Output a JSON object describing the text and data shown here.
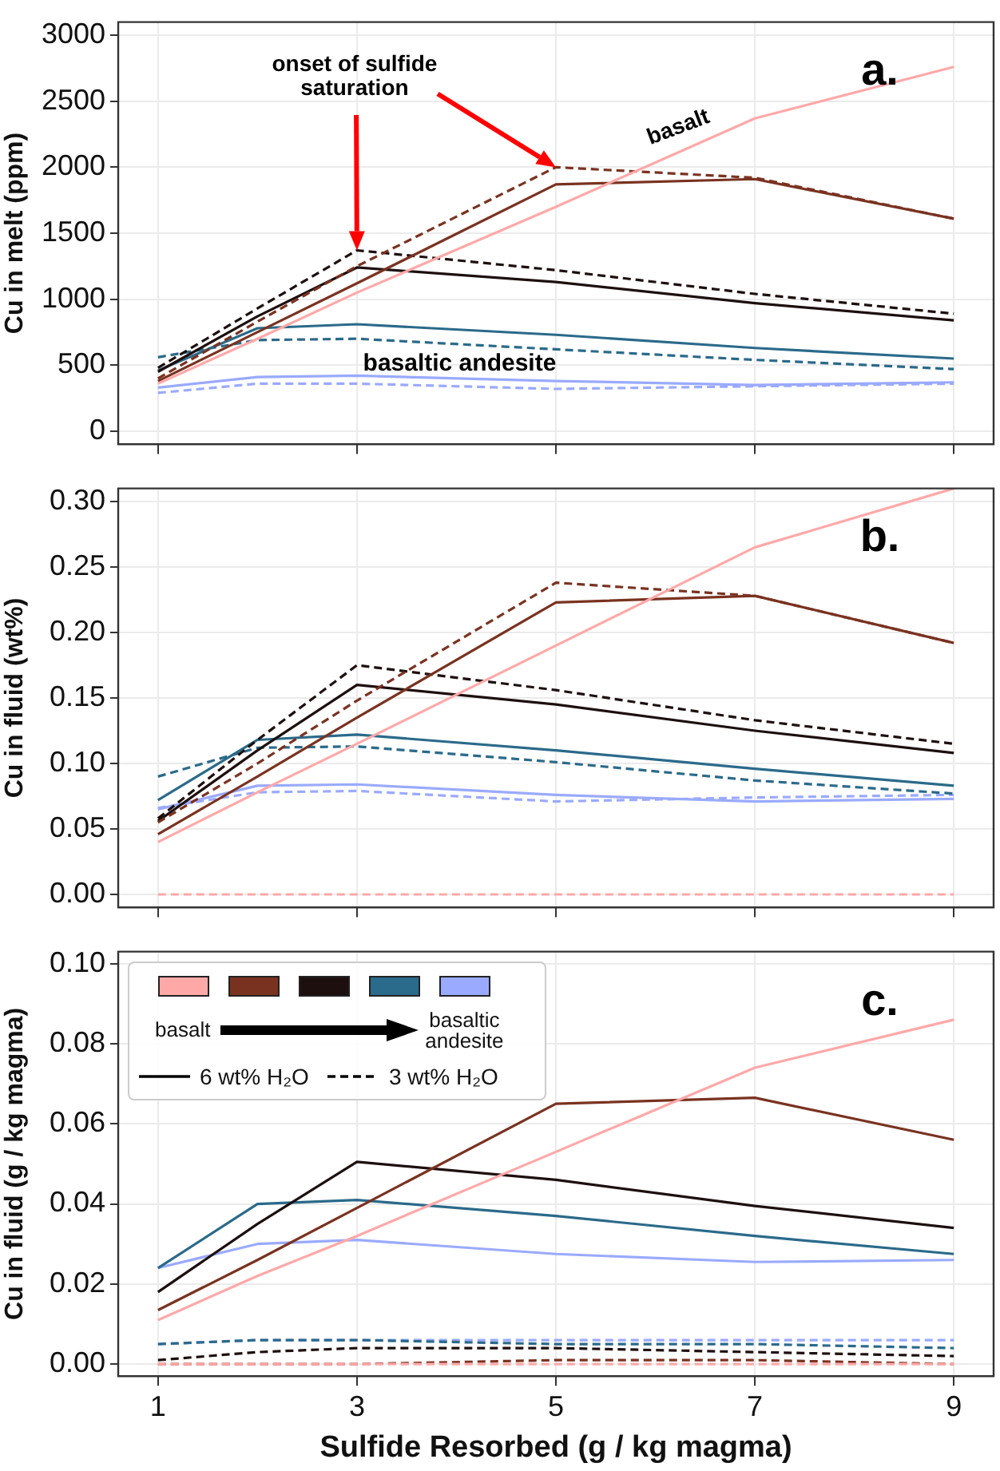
{
  "chart_data": [
    {
      "type": "line",
      "ylabel": "Cu in melt (ppm)",
      "x": [
        1,
        2,
        3,
        5,
        7,
        9
      ],
      "xlim": [
        0.6,
        9.4
      ],
      "xticks": [
        1,
        3,
        5,
        7,
        9
      ],
      "ylim": [
        -100,
        3100
      ],
      "yticks": [
        0,
        500,
        1000,
        1500,
        2000,
        2500,
        3000
      ],
      "grid": true,
      "tick_labels": "y",
      "annotations": [
        "a.",
        "onset of sulfide saturation",
        "basalt",
        "basaltic andesite"
      ],
      "series": [
        {
          "color": "#ffa8a8",
          "line_style": "solid",
          "values": [
            360,
            700,
            1050,
            1700,
            2370,
            2760
          ]
        },
        {
          "color": "#7a3220",
          "line_style": "solid",
          "values": [
            380,
            750,
            1120,
            1870,
            1910,
            1610
          ]
        },
        {
          "color": "#7a3220",
          "line_style": "dashed",
          "values": [
            400,
            830,
            1250,
            2000,
            1920,
            1610
          ]
        },
        {
          "color": "#1e0f0f",
          "line_style": "solid",
          "values": [
            450,
            870,
            1240,
            1130,
            970,
            840
          ]
        },
        {
          "color": "#1e0f0f",
          "line_style": "dashed",
          "values": [
            480,
            930,
            1370,
            1220,
            1040,
            890
          ]
        },
        {
          "color": "#2a6a8a",
          "line_style": "solid",
          "values": [
            460,
            780,
            810,
            730,
            630,
            550
          ]
        },
        {
          "color": "#2a6a8a",
          "line_style": "dashed",
          "values": [
            560,
            690,
            700,
            620,
            540,
            470
          ]
        },
        {
          "color": "#9aaaff",
          "line_style": "solid",
          "values": [
            330,
            410,
            420,
            380,
            350,
            370
          ]
        },
        {
          "color": "#9aaaff",
          "line_style": "dashed",
          "values": [
            290,
            360,
            360,
            320,
            340,
            360
          ]
        }
      ]
    },
    {
      "type": "line",
      "ylabel": "Cu in fluid (wt%)",
      "x": [
        1,
        2,
        3,
        5,
        7,
        9
      ],
      "xlim": [
        0.6,
        9.4
      ],
      "xticks": [
        1,
        3,
        5,
        7,
        9
      ],
      "ylim": [
        -0.01,
        0.31
      ],
      "yticks": [
        {
          "value": 0,
          "label": "0.00"
        },
        {
          "value": 0.05,
          "label": "0.05"
        },
        {
          "value": 0.1,
          "label": "0.10"
        },
        {
          "value": 0.15,
          "label": "0.15"
        },
        {
          "value": 0.2,
          "label": "0.20"
        },
        {
          "value": 0.25,
          "label": "0.25"
        },
        {
          "value": 0.3,
          "label": "0.30"
        }
      ],
      "grid": true,
      "tick_labels": "y",
      "annotations": [
        "b."
      ],
      "series": [
        {
          "color": "#ffa8a8",
          "line_style": "solid",
          "values": [
            0.04,
            0.078,
            0.115,
            0.19,
            0.265,
            0.31
          ]
        },
        {
          "color": "#ffa8a8",
          "line_style": "dashed",
          "values": [
            0,
            0,
            0,
            0,
            0,
            0
          ]
        },
        {
          "color": "#7a3220",
          "line_style": "solid",
          "values": [
            0.046,
            0.09,
            0.135,
            0.223,
            0.228,
            0.192
          ]
        },
        {
          "color": "#7a3220",
          "line_style": "dashed",
          "values": [
            0.055,
            0.1,
            0.148,
            0.238,
            0.228,
            0.192
          ]
        },
        {
          "color": "#1e0f0f",
          "line_style": "solid",
          "values": [
            0.056,
            0.11,
            0.16,
            0.145,
            0.125,
            0.108
          ]
        },
        {
          "color": "#1e0f0f",
          "line_style": "dashed",
          "values": [
            0.058,
            0.118,
            0.175,
            0.156,
            0.133,
            0.115
          ]
        },
        {
          "color": "#2a6a8a",
          "line_style": "solid",
          "values": [
            0.072,
            0.118,
            0.122,
            0.11,
            0.096,
            0.083
          ]
        },
        {
          "color": "#2a6a8a",
          "line_style": "dashed",
          "values": [
            0.09,
            0.112,
            0.113,
            0.101,
            0.087,
            0.077
          ]
        },
        {
          "color": "#9aaaff",
          "line_style": "solid",
          "values": [
            0.065,
            0.083,
            0.084,
            0.076,
            0.071,
            0.073
          ]
        },
        {
          "color": "#9aaaff",
          "line_style": "dashed",
          "values": [
            0.066,
            0.078,
            0.079,
            0.071,
            0.074,
            0.076
          ]
        }
      ]
    },
    {
      "type": "line",
      "ylabel": "Cu in fluid (g / kg magma)",
      "xlabel": "Sulfide Resorbed (g / kg magma)",
      "x": [
        1,
        2,
        3,
        5,
        7,
        9
      ],
      "xlim": [
        0.6,
        9.4
      ],
      "xticks": [
        1,
        3,
        5,
        7,
        9
      ],
      "ylim": [
        -0.003,
        0.103
      ],
      "yticks": [
        {
          "value": 0,
          "label": "0.00"
        },
        {
          "value": 0.02,
          "label": "0.02"
        },
        {
          "value": 0.04,
          "label": "0.04"
        },
        {
          "value": 0.06,
          "label": "0.06"
        },
        {
          "value": 0.08,
          "label": "0.08"
        },
        {
          "value": 0.1,
          "label": "0.10"
        }
      ],
      "grid": true,
      "annotations": [
        "c.",
        "basalt",
        "basaltic andesite",
        "6 wt% H₂O",
        "3 wt% H₂O"
      ],
      "series": [
        {
          "color": "#ffa8a8",
          "line_style": "solid",
          "values": [
            0.011,
            0.022,
            0.032,
            0.053,
            0.074,
            0.086
          ]
        },
        {
          "color": "#ffa8a8",
          "line_style": "dashed",
          "values": [
            0,
            0,
            0,
            0,
            0,
            0
          ]
        },
        {
          "color": "#7a3220",
          "line_style": "solid",
          "values": [
            0.0135,
            0.026,
            0.039,
            0.065,
            0.0665,
            0.056
          ]
        },
        {
          "color": "#7a3220",
          "line_style": "dashed",
          "values": [
            0,
            0,
            0,
            0.001,
            0.001,
            0
          ]
        },
        {
          "color": "#1e0f0f",
          "line_style": "solid",
          "values": [
            0.018,
            0.035,
            0.0505,
            0.046,
            0.0395,
            0.034
          ]
        },
        {
          "color": "#1e0f0f",
          "line_style": "dashed",
          "values": [
            0.001,
            0.003,
            0.004,
            0.004,
            0.003,
            0.002
          ]
        },
        {
          "color": "#2a6a8a",
          "line_style": "solid",
          "values": [
            0.024,
            0.04,
            0.041,
            0.037,
            0.032,
            0.0275
          ]
        },
        {
          "color": "#2a6a8a",
          "line_style": "dashed",
          "values": [
            0.005,
            0.006,
            0.006,
            0.005,
            0.005,
            0.004
          ]
        },
        {
          "color": "#9aaaff",
          "line_style": "solid",
          "values": [
            0.024,
            0.03,
            0.031,
            0.0275,
            0.0255,
            0.026
          ]
        },
        {
          "color": "#9aaaff",
          "line_style": "dashed",
          "values": [
            0.005,
            0.006,
            0.006,
            0.006,
            0.006,
            0.006
          ]
        }
      ]
    }
  ]
}
